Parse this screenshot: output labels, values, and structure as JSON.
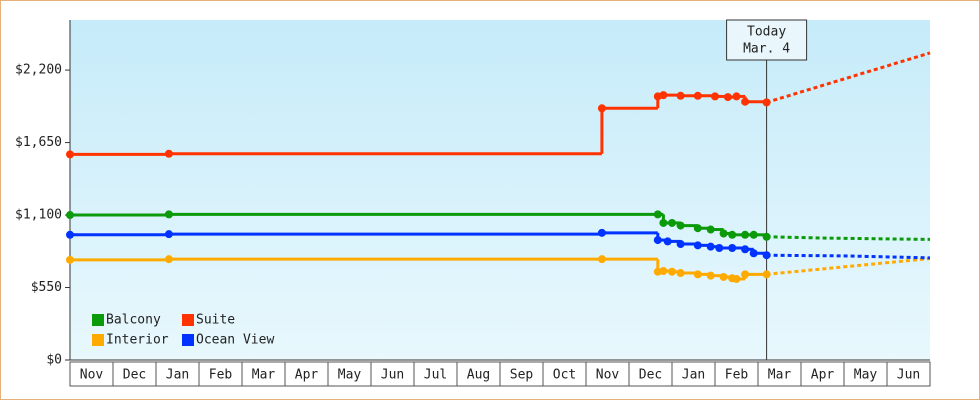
{
  "chart_data": {
    "type": "step",
    "categories": [
      "Nov",
      "Dec",
      "Jan",
      "Feb",
      "Mar",
      "Apr",
      "May",
      "Jun",
      "Jul",
      "Aug",
      "Sep",
      "Oct",
      "Nov",
      "Dec",
      "Jan",
      "Feb",
      "Mar",
      "Apr",
      "May",
      "Jun"
    ],
    "xlim": [
      0,
      20
    ],
    "ylim": [
      0,
      2580
    ],
    "yticks": [
      {
        "value": 0,
        "label": "$0"
      },
      {
        "value": 550,
        "label": "$550"
      },
      {
        "value": 1100,
        "label": "$1,100"
      },
      {
        "value": 1650,
        "label": "$1,650"
      },
      {
        "value": 2200,
        "label": "$2,200"
      }
    ],
    "today": {
      "x": 16.2,
      "label": "Today",
      "date": "Mar. 4"
    },
    "series": [
      {
        "name": "Balcony",
        "color": "#0a9a0a",
        "x": [
          0,
          2.3,
          13.67,
          13.8,
          14.0,
          14.2,
          14.6,
          14.9,
          15.2,
          15.4,
          15.7,
          15.9,
          16.2
        ],
        "values": [
          1100,
          1105,
          1105,
          1040,
          1040,
          1020,
          1000,
          990,
          960,
          950,
          950,
          950,
          935
        ],
        "projection": {
          "x": [
            16.2,
            17.6,
            20
          ],
          "values": [
            935,
            925,
            915
          ]
        }
      },
      {
        "name": "Suite",
        "color": "#ff3300",
        "x": [
          0,
          2.3,
          12.37,
          13.67,
          13.8,
          14.2,
          14.6,
          15.0,
          15.3,
          15.5,
          15.7,
          16.2
        ],
        "values": [
          1560,
          1565,
          1910,
          2000,
          2010,
          2005,
          2005,
          2000,
          1995,
          2000,
          1960,
          1955
        ],
        "projection": {
          "x": [
            16.2,
            20
          ],
          "values": [
            1955,
            2330
          ]
        }
      },
      {
        "name": "Interior",
        "color": "#ffaa00",
        "x": [
          0,
          2.3,
          12.37,
          13.67,
          13.8,
          14.0,
          14.2,
          14.6,
          14.9,
          15.2,
          15.4,
          15.5,
          15.7,
          16.2
        ],
        "values": [
          760,
          765,
          765,
          670,
          675,
          670,
          660,
          650,
          640,
          630,
          620,
          615,
          650,
          650
        ],
        "projection": {
          "x": [
            16.2,
            20
          ],
          "values": [
            650,
            770
          ]
        }
      },
      {
        "name": "Ocean View",
        "color": "#0033ff",
        "x": [
          0,
          2.3,
          12.37,
          13.67,
          13.9,
          14.2,
          14.6,
          14.9,
          15.1,
          15.4,
          15.7,
          15.9,
          16.2
        ],
        "values": [
          950,
          955,
          965,
          910,
          900,
          880,
          870,
          860,
          850,
          850,
          840,
          810,
          795
        ],
        "projection": {
          "x": [
            16.2,
            18,
            20
          ],
          "values": [
            795,
            790,
            775
          ]
        }
      }
    ]
  }
}
